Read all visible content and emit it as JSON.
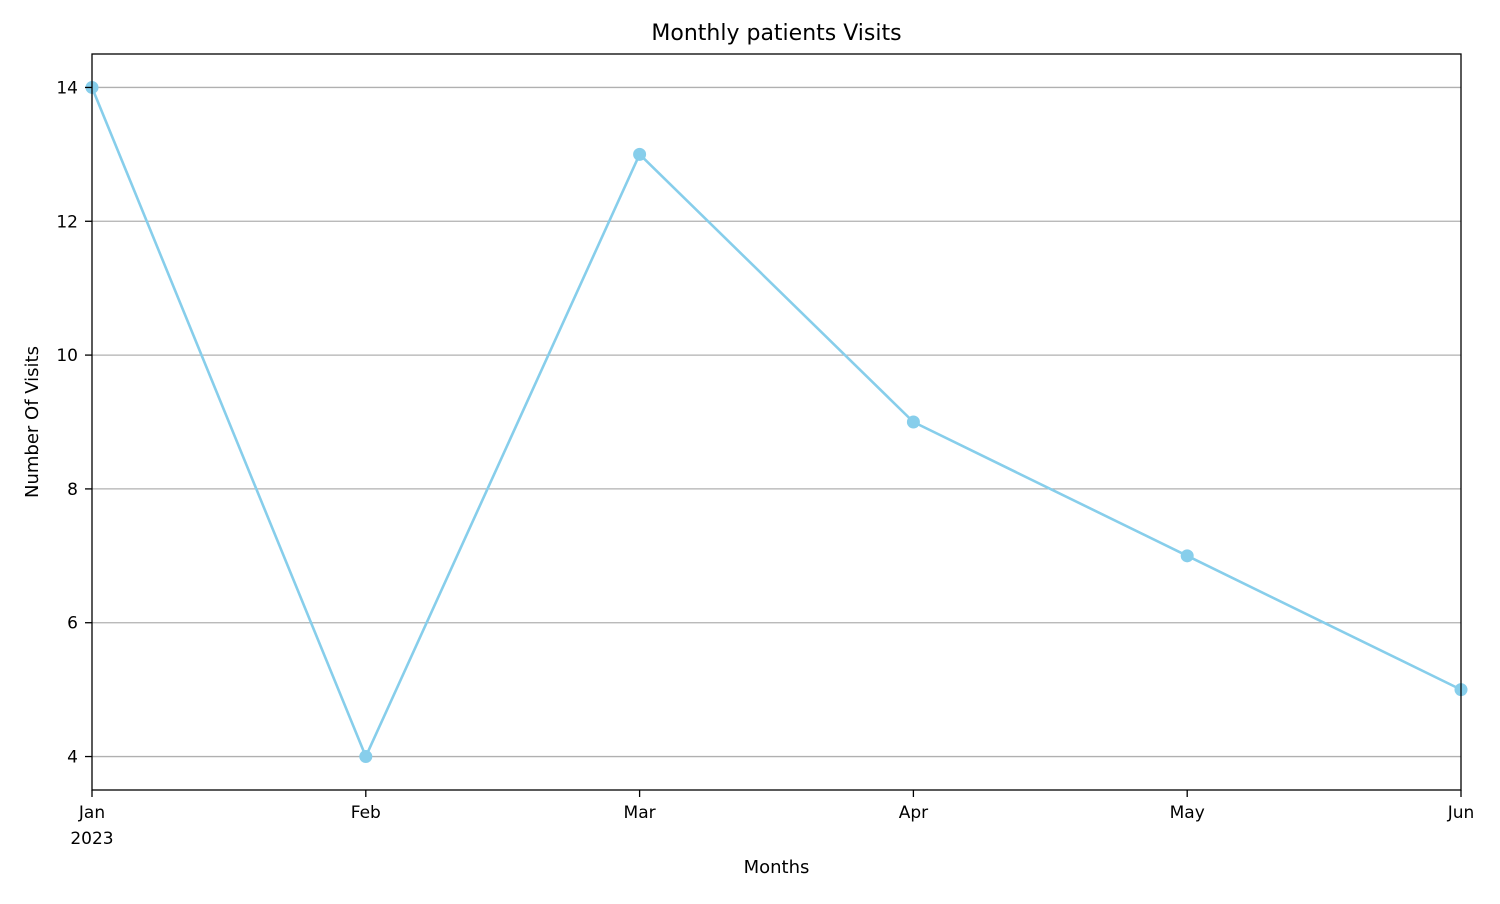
{
  "chart_data": {
    "type": "line",
    "title": "Monthly patients Visits",
    "xlabel": "Months",
    "ylabel": "Number Of Visits",
    "x_tick_year": "2023",
    "categories": [
      "Jan",
      "Feb",
      "Mar",
      "Apr",
      "May",
      "Jun"
    ],
    "x": [
      "2023-01",
      "2023-02",
      "2023-03",
      "2023-04",
      "2023-05",
      "2023-06"
    ],
    "series": [
      {
        "values": [
          14,
          4,
          13,
          9,
          7,
          5
        ],
        "color": "#87CEEB",
        "marker": "circle"
      }
    ],
    "ylim": [
      3.5,
      14.5
    ],
    "yticks": [
      4,
      6,
      8,
      10,
      12,
      14
    ],
    "grid": "horizontal",
    "legend": "none"
  }
}
